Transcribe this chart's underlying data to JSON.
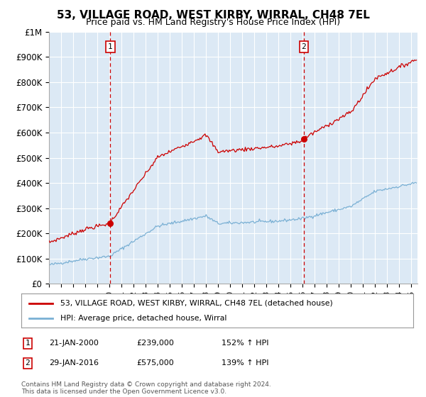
{
  "title": "53, VILLAGE ROAD, WEST KIRBY, WIRRAL, CH48 7EL",
  "subtitle": "Price paid vs. HM Land Registry's House Price Index (HPI)",
  "legend_line1": "53, VILLAGE ROAD, WEST KIRBY, WIRRAL, CH48 7EL (detached house)",
  "legend_line2": "HPI: Average price, detached house, Wirral",
  "annotation1_label": "1",
  "annotation1_date": "21-JAN-2000",
  "annotation1_price": "£239,000",
  "annotation1_hpi": "152% ↑ HPI",
  "annotation2_label": "2",
  "annotation2_date": "29-JAN-2016",
  "annotation2_price": "£575,000",
  "annotation2_hpi": "139% ↑ HPI",
  "footnote": "Contains HM Land Registry data © Crown copyright and database right 2024.\nThis data is licensed under the Open Government Licence v3.0.",
  "sale1_year": 2000.08,
  "sale1_price": 239000,
  "sale2_year": 2016.08,
  "sale2_price": 575000,
  "line_color_property": "#cc0000",
  "line_color_hpi": "#7ab0d4",
  "vline_color": "#cc0000",
  "marker_box_color": "#cc0000",
  "background_color": "#ffffff",
  "plot_bg_color": "#dce9f5",
  "grid_color": "#ffffff",
  "ylim": [
    0,
    1000000
  ],
  "xlim_start": 1995.0,
  "xlim_end": 2025.5,
  "title_fontsize": 11,
  "subtitle_fontsize": 9
}
